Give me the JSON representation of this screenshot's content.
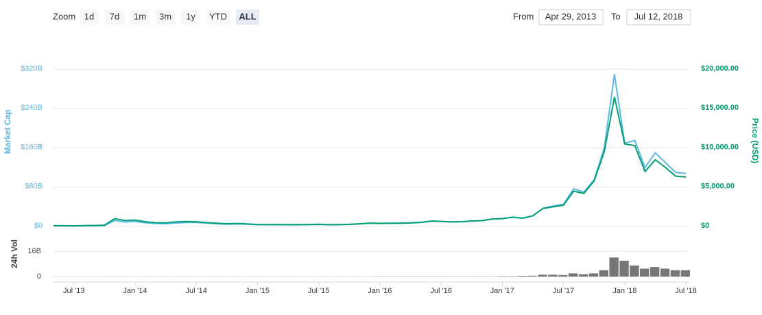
{
  "controls": {
    "zoom_label": "Zoom",
    "buttons": [
      "1d",
      "7d",
      "1m",
      "3m",
      "1y",
      "YTD",
      "ALL"
    ],
    "active": 6,
    "from_label": "From",
    "from_value": "Apr 29, 2013",
    "to_label": "To",
    "to_value": "Jul 12, 2018"
  },
  "chart_data": [
    {
      "type": "line",
      "y_label": "Market Cap",
      "y2_label": "Price (USD)",
      "x": [
        "2013-05",
        "2013-06",
        "2013-07",
        "2013-08",
        "2013-09",
        "2013-10",
        "2013-11",
        "2013-12",
        "2014-01",
        "2014-02",
        "2014-03",
        "2014-04",
        "2014-05",
        "2014-06",
        "2014-07",
        "2014-08",
        "2014-09",
        "2014-10",
        "2014-11",
        "2014-12",
        "2015-01",
        "2015-02",
        "2015-03",
        "2015-04",
        "2015-05",
        "2015-06",
        "2015-07",
        "2015-08",
        "2015-09",
        "2015-10",
        "2015-11",
        "2015-12",
        "2016-01",
        "2016-02",
        "2016-03",
        "2016-04",
        "2016-05",
        "2016-06",
        "2016-07",
        "2016-08",
        "2016-09",
        "2016-10",
        "2016-11",
        "2016-12",
        "2017-01",
        "2017-02",
        "2017-03",
        "2017-04",
        "2017-05",
        "2017-06",
        "2017-07",
        "2017-08",
        "2017-09",
        "2017-10",
        "2017-11",
        "2017-12",
        "2018-01",
        "2018-02",
        "2018-03",
        "2018-04",
        "2018-05",
        "2018-06",
        "2018-07"
      ],
      "xlim": [
        "2013-05",
        "2018-07"
      ],
      "ylim": [
        0,
        320
      ],
      "yticks": [
        {
          "value": 0,
          "label": "$0"
        },
        {
          "value": 80,
          "label": "$80B"
        },
        {
          "value": 160,
          "label": "$160B"
        },
        {
          "value": 240,
          "label": "$240B"
        },
        {
          "value": 320,
          "label": "$320B"
        }
      ],
      "y2lim": [
        0,
        20000
      ],
      "y2ticks": [
        {
          "value": 0,
          "label": "$0"
        },
        {
          "value": 5000,
          "label": "$5,000.00"
        },
        {
          "value": 10000,
          "label": "$10,000.00"
        },
        {
          "value": 15000,
          "label": "$15,000.00"
        },
        {
          "value": 20000,
          "label": "$20,000.00"
        }
      ],
      "grid": true,
      "series": [
        {
          "name": "Market Cap",
          "color": "#5db8e6",
          "values": [
            1.3,
            1.2,
            1.0,
            1.3,
            1.5,
            2.0,
            12,
            9,
            10,
            7.5,
            6,
            5.5,
            7,
            8,
            8,
            6.5,
            5.5,
            4.5,
            5,
            4.5,
            3.5,
            3.5,
            3.5,
            3.3,
            3.4,
            3.6,
            4.1,
            3.4,
            3.5,
            4,
            5,
            6.5,
            6,
            6.5,
            6.5,
            7,
            8,
            11,
            10.5,
            9.5,
            9.7,
            11,
            12,
            15,
            16,
            19,
            17,
            22,
            37,
            42,
            45,
            77,
            70,
            95,
            160,
            310,
            170,
            175,
            120,
            150,
            130,
            110,
            108
          ]
        },
        {
          "name": "Price (USD)",
          "color": "#009e73",
          "axis": "y2",
          "values": [
            115,
            100,
            90,
            110,
            125,
            170,
            1000,
            750,
            820,
            600,
            480,
            450,
            580,
            640,
            600,
            500,
            420,
            350,
            380,
            330,
            250,
            240,
            250,
            230,
            235,
            245,
            285,
            230,
            235,
            270,
            340,
            430,
            400,
            420,
            415,
            450,
            520,
            680,
            650,
            580,
            600,
            700,
            740,
            950,
            1000,
            1180,
            1050,
            1350,
            2300,
            2500,
            2700,
            4500,
            4200,
            5800,
            9500,
            16500,
            10500,
            10300,
            7000,
            8500,
            7500,
            6400,
            6300
          ]
        }
      ]
    },
    {
      "type": "bar",
      "y_label": "24h Vol",
      "x": [
        "2013-05",
        "2013-06",
        "2013-07",
        "2013-08",
        "2013-09",
        "2013-10",
        "2013-11",
        "2013-12",
        "2014-01",
        "2014-02",
        "2014-03",
        "2014-04",
        "2014-05",
        "2014-06",
        "2014-07",
        "2014-08",
        "2014-09",
        "2014-10",
        "2014-11",
        "2014-12",
        "2015-01",
        "2015-02",
        "2015-03",
        "2015-04",
        "2015-05",
        "2015-06",
        "2015-07",
        "2015-08",
        "2015-09",
        "2015-10",
        "2015-11",
        "2015-12",
        "2016-01",
        "2016-02",
        "2016-03",
        "2016-04",
        "2016-05",
        "2016-06",
        "2016-07",
        "2016-08",
        "2016-09",
        "2016-10",
        "2016-11",
        "2016-12",
        "2017-01",
        "2017-02",
        "2017-03",
        "2017-04",
        "2017-05",
        "2017-06",
        "2017-07",
        "2017-08",
        "2017-09",
        "2017-10",
        "2017-11",
        "2017-12",
        "2018-01",
        "2018-02",
        "2018-03",
        "2018-04",
        "2018-05",
        "2018-06",
        "2018-07"
      ],
      "xlim": [
        "2013-05",
        "2018-07"
      ],
      "xticks": [
        {
          "value": "2013-07",
          "label": "Jul '13"
        },
        {
          "value": "2014-01",
          "label": "Jan '14"
        },
        {
          "value": "2014-07",
          "label": "Jul '14"
        },
        {
          "value": "2015-01",
          "label": "Jan '15"
        },
        {
          "value": "2015-07",
          "label": "Jul '15"
        },
        {
          "value": "2016-01",
          "label": "Jan '16"
        },
        {
          "value": "2016-07",
          "label": "Jul '16"
        },
        {
          "value": "2017-01",
          "label": "Jan '17"
        },
        {
          "value": "2017-07",
          "label": "Jul '17"
        },
        {
          "value": "2018-01",
          "label": "Jan '18"
        },
        {
          "value": "2018-07",
          "label": "Jul '18"
        }
      ],
      "ylim": [
        0,
        16
      ],
      "yticks": [
        0,
        {
          "value": 16,
          "label": "16B"
        }
      ],
      "grid": true,
      "color": "#777777",
      "values": [
        0.02,
        0.02,
        0.02,
        0.02,
        0.02,
        0.02,
        0.05,
        0.04,
        0.03,
        0.03,
        0.03,
        0.03,
        0.03,
        0.03,
        0.03,
        0.03,
        0.03,
        0.03,
        0.03,
        0.03,
        0.03,
        0.03,
        0.03,
        0.03,
        0.03,
        0.03,
        0.03,
        0.03,
        0.03,
        0.03,
        0.03,
        0.03,
        0.08,
        0.08,
        0.08,
        0.08,
        0.08,
        0.08,
        0.08,
        0.08,
        0.08,
        0.08,
        0.08,
        0.08,
        0.2,
        0.2,
        0.4,
        0.5,
        1.2,
        1.2,
        1.0,
        2.0,
        1.5,
        2.0,
        4.0,
        12,
        10,
        7,
        5,
        6,
        5,
        4,
        4
      ]
    }
  ]
}
